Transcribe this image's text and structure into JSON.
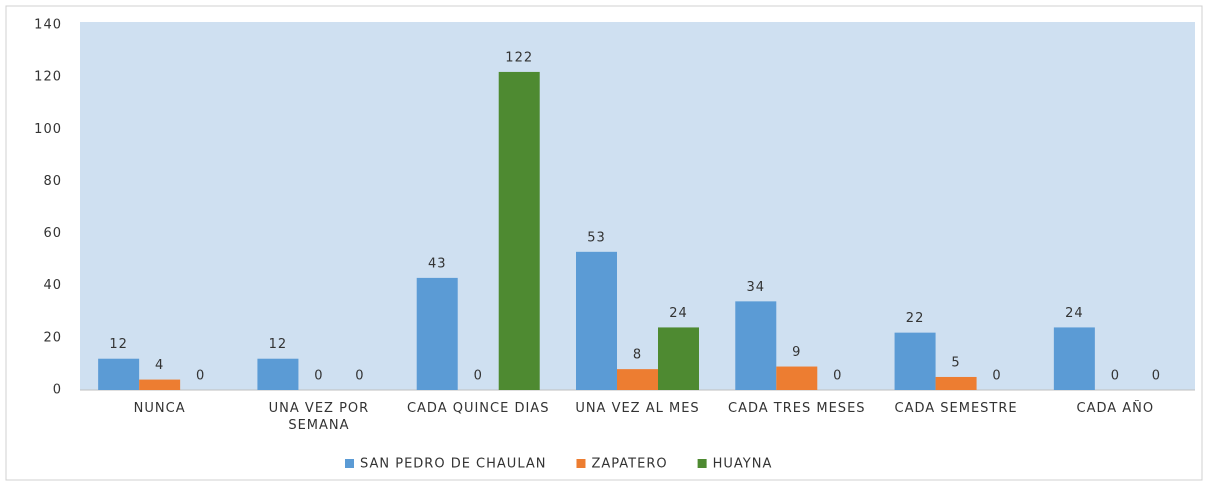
{
  "chart_data": {
    "type": "bar",
    "categories": [
      "NUNCA",
      "UNA VEZ POR SEMANA",
      "CADA QUINCE DIAS",
      "UNA VEZ AL MES",
      "CADA TRES MESES",
      "CADA SEMESTRE",
      "CADA AÑO"
    ],
    "series": [
      {
        "name": "SAN PEDRO DE CHAULAN",
        "color": "#5b9bd5",
        "values": [
          12,
          12,
          43,
          53,
          34,
          22,
          24
        ]
      },
      {
        "name": "ZAPATERO",
        "color": "#ed7d31",
        "values": [
          4,
          0,
          0,
          8,
          9,
          5,
          0
        ]
      },
      {
        "name": "HUAYNA",
        "color": "#4e8a31",
        "values": [
          0,
          0,
          122,
          24,
          0,
          0,
          0
        ]
      }
    ],
    "ylim": [
      0,
      140
    ],
    "yticks": [
      0,
      20,
      40,
      60,
      80,
      100,
      120,
      140
    ],
    "grid": false,
    "legend": "bottom"
  }
}
